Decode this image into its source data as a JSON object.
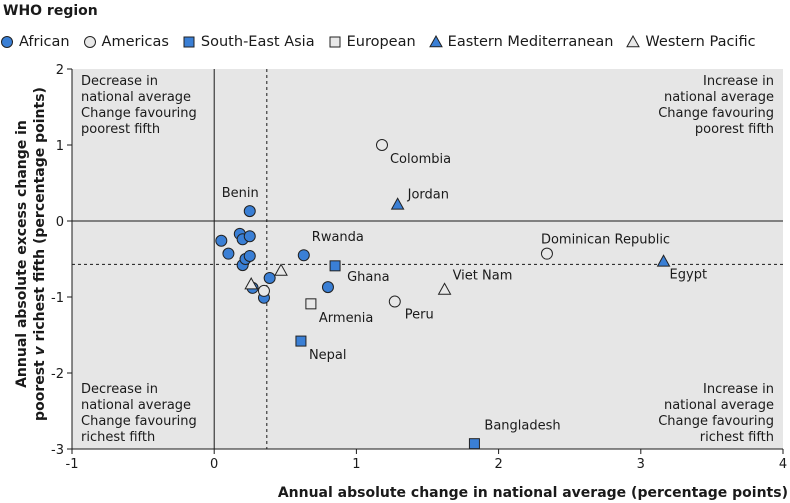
{
  "chart_data": {
    "type": "scatter",
    "legend_title": "WHO region",
    "legend": [
      {
        "key": "african",
        "label": "African",
        "marker": "circle",
        "fill": "#3a7fd5"
      },
      {
        "key": "americas",
        "label": "Americas",
        "marker": "circle",
        "fill": "#e8e8e8"
      },
      {
        "key": "sea",
        "label": "South-East Asia",
        "marker": "square",
        "fill": "#3a7fd5"
      },
      {
        "key": "european",
        "label": "European",
        "marker": "square",
        "fill": "#e8e8e8"
      },
      {
        "key": "emed",
        "label": "Eastern Mediterranean",
        "marker": "triangle",
        "fill": "#3a7fd5"
      },
      {
        "key": "wpac",
        "label": "Western Pacific",
        "marker": "triangle",
        "fill": "#e8e8e8"
      }
    ],
    "xlabel": "Annual absolute change in national average (percentage points)",
    "ylabel_line1": "Annual absolute excess change in",
    "ylabel_line2_pre": "poorest ",
    "ylabel_line2_v": "v",
    "ylabel_line2_post": " richest fifth (percentage points)",
    "xlim": [
      -1,
      4
    ],
    "ylim": [
      -3,
      2
    ],
    "xticks": [
      -1,
      0,
      1,
      2,
      3,
      4
    ],
    "xtick_labels": [
      "-1",
      "0",
      "1",
      "2",
      "3",
      "4"
    ],
    "yticks": [
      -3,
      -2,
      -1,
      0,
      1,
      2
    ],
    "ytick_labels": [
      "-3",
      "-2",
      "-1",
      "0",
      "1",
      "2"
    ],
    "ref_lines": {
      "x": 0.37,
      "y": -0.57
    },
    "quadrant_labels": {
      "top_left": [
        "Decrease in",
        "national average",
        "Change favouring",
        "poorest fifth"
      ],
      "top_right": [
        "Increase in",
        "national average",
        "Change favouring",
        "poorest fifth"
      ],
      "bottom_left": [
        "Decrease in",
        "national average",
        "Change favouring",
        "richest fifth"
      ],
      "bottom_right": [
        "Increase in",
        "national average",
        "Change favouring",
        "richest fifth"
      ]
    },
    "points": [
      {
        "region": "african",
        "x": 0.05,
        "y": -0.26
      },
      {
        "region": "african",
        "x": 0.1,
        "y": -0.43
      },
      {
        "region": "african",
        "x": 0.18,
        "y": -0.17
      },
      {
        "region": "african",
        "x": 0.2,
        "y": -0.24
      },
      {
        "region": "african",
        "x": 0.2,
        "y": -0.58
      },
      {
        "region": "african",
        "x": 0.22,
        "y": -0.5
      },
      {
        "region": "african",
        "x": 0.25,
        "y": -0.2
      },
      {
        "region": "african",
        "x": 0.25,
        "y": -0.46
      },
      {
        "region": "african",
        "x": 0.25,
        "y": 0.13,
        "label": "Benin"
      },
      {
        "region": "african",
        "x": 0.27,
        "y": -0.88
      },
      {
        "region": "african",
        "x": 0.35,
        "y": -1.01
      },
      {
        "region": "african",
        "x": 0.39,
        "y": -0.75
      },
      {
        "region": "african",
        "x": 0.63,
        "y": -0.45,
        "label": "Rwanda"
      },
      {
        "region": "african",
        "x": 0.8,
        "y": -0.87
      },
      {
        "region": "americas",
        "x": 1.18,
        "y": 1.0,
        "label": "Colombia"
      },
      {
        "region": "americas",
        "x": 1.27,
        "y": -1.06,
        "label": "Peru"
      },
      {
        "region": "americas",
        "x": 2.34,
        "y": -0.43,
        "label": "Dominican Republic"
      },
      {
        "region": "americas",
        "x": 0.35,
        "y": -0.92
      },
      {
        "region": "sea",
        "x": 0.85,
        "y": -0.59,
        "label": "Ghana"
      },
      {
        "region": "sea",
        "x": 0.61,
        "y": -1.58,
        "label": "Nepal"
      },
      {
        "region": "sea",
        "x": 1.83,
        "y": -2.93,
        "label": "Bangladesh"
      },
      {
        "region": "european",
        "x": 0.68,
        "y": -1.09,
        "label": "Armenia"
      },
      {
        "region": "emed",
        "x": 1.29,
        "y": 0.22,
        "label": "Jordan"
      },
      {
        "region": "emed",
        "x": 3.16,
        "y": -0.53,
        "label": "Egypt"
      },
      {
        "region": "wpac",
        "x": 1.62,
        "y": -0.9,
        "label": "Viet Nam"
      },
      {
        "region": "wpac",
        "x": 0.47,
        "y": -0.65
      },
      {
        "region": "wpac",
        "x": 0.26,
        "y": -0.83
      }
    ]
  }
}
